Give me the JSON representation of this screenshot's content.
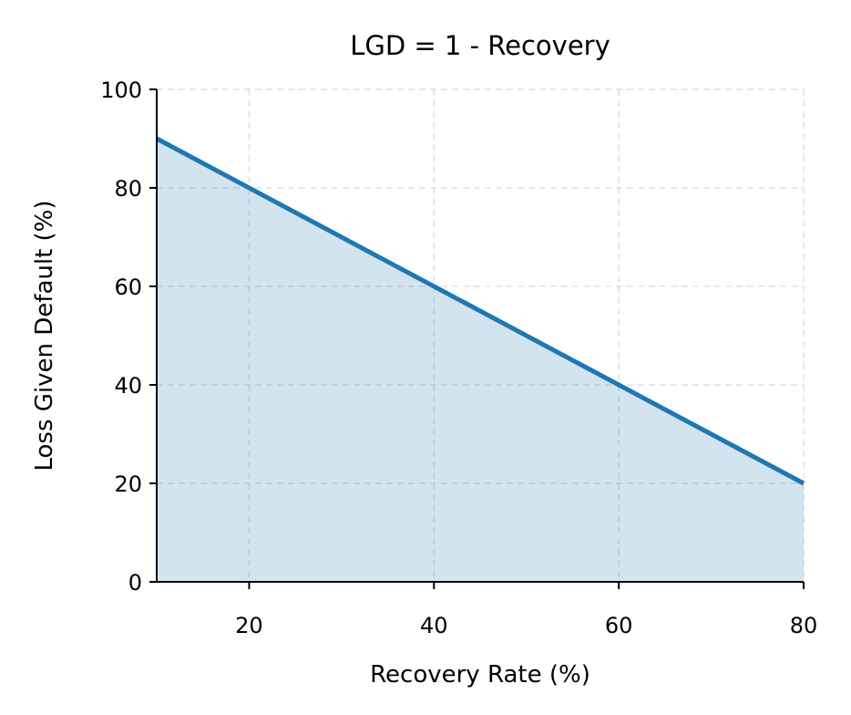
{
  "chart_data": {
    "type": "area",
    "title": "LGD = 1 - Recovery",
    "xlabel": "Recovery Rate (%)",
    "ylabel": "Loss Given Default (%)",
    "xlim": [
      10,
      80
    ],
    "ylim": [
      0,
      100
    ],
    "xticks": [
      20,
      40,
      60,
      80
    ],
    "yticks": [
      0,
      20,
      40,
      60,
      80,
      100
    ],
    "grid": true,
    "x": [
      10,
      80
    ],
    "y": [
      90,
      20
    ],
    "line_color": "#1f77b4",
    "fill_color": "#1f77b4",
    "fill_alpha": 0.2
  }
}
